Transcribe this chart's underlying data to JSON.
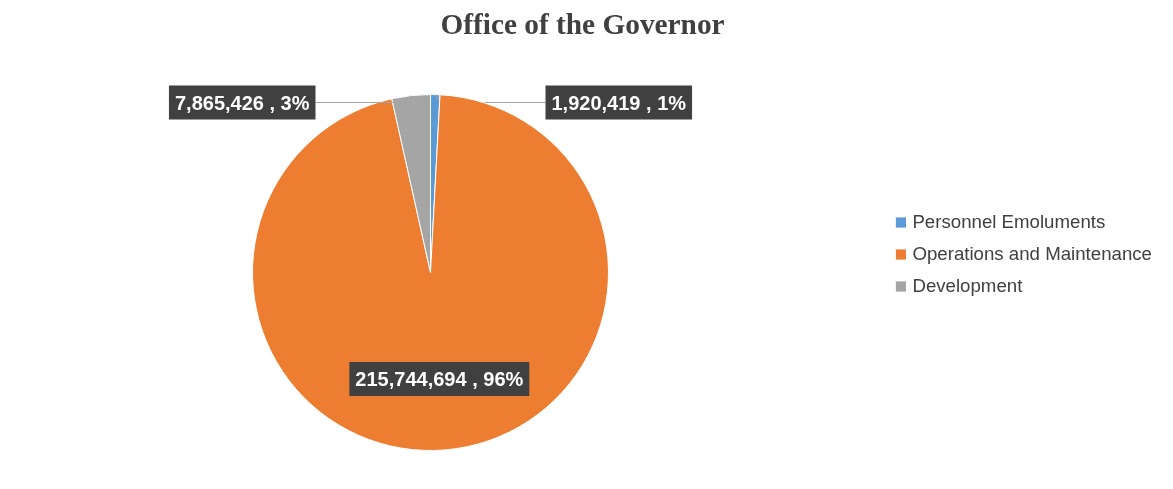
{
  "chart_data": {
    "type": "pie",
    "title": "Office of the Governor",
    "categories": [
      "Personnel Emoluments",
      "Operations and Maintenance",
      "Development"
    ],
    "values": [
      1920419,
      215744694,
      7865426
    ],
    "colors": [
      "#5b9bd5",
      "#ed7d31",
      "#a5a5a5"
    ],
    "value_labels": [
      "1,920,419 , 1%",
      "215,744,694 , 96%",
      "7,865,426 , 3%"
    ],
    "legend": "right"
  }
}
